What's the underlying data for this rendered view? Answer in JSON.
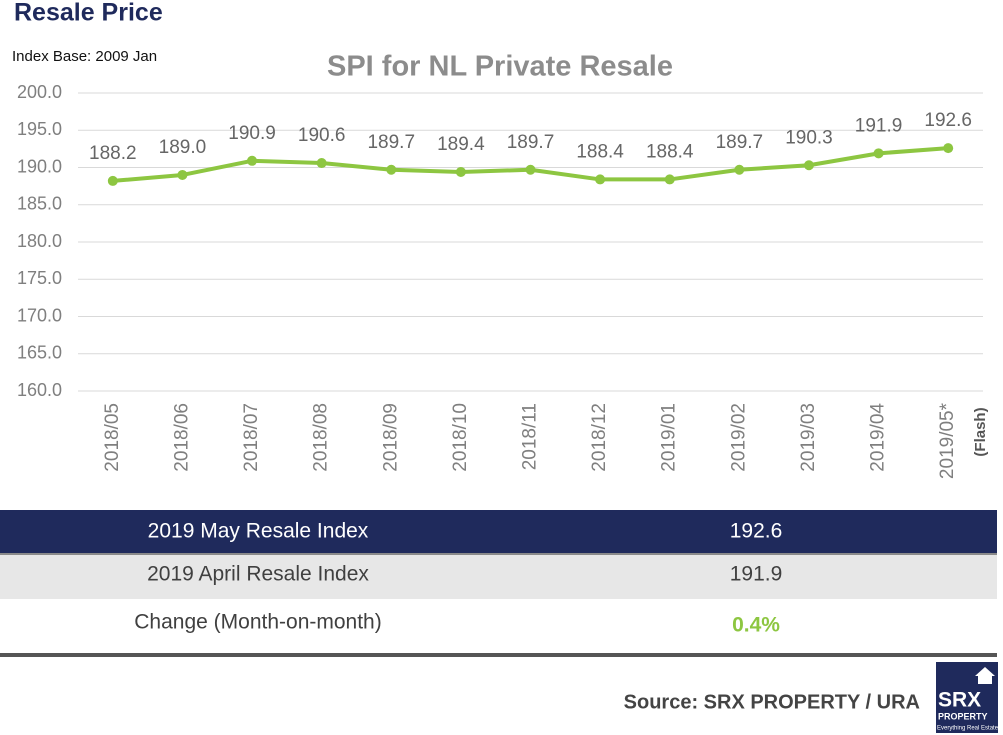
{
  "header": {
    "title": "Resale Price"
  },
  "chart_data": {
    "type": "line",
    "title": "SPI for NL Private Resale",
    "subtitle": "Index Base: 2009 Jan",
    "annotation": "(Flash)",
    "categories": [
      "2018/05",
      "2018/06",
      "2018/07",
      "2018/08",
      "2018/09",
      "2018/10",
      "2018/11",
      "2018/12",
      "2019/01",
      "2019/02",
      "2019/03",
      "2019/04",
      "2019/05*"
    ],
    "values": [
      188.2,
      189.0,
      190.9,
      190.6,
      189.7,
      189.4,
      189.7,
      188.4,
      188.4,
      189.7,
      190.3,
      191.9,
      192.6
    ],
    "value_labels": [
      "188.2",
      "189.0",
      "190.9",
      "190.6",
      "189.7",
      "189.4",
      "189.7",
      "188.4",
      "188.4",
      "189.7",
      "190.3",
      "191.9",
      "192.6"
    ],
    "color": "#8dc641",
    "ylim": [
      160,
      200
    ],
    "yticks": [
      {
        "value": 160,
        "label": "160.0"
      },
      {
        "value": 165,
        "label": "165.0"
      },
      {
        "value": 170,
        "label": "170.0"
      },
      {
        "value": 175,
        "label": "175.0"
      },
      {
        "value": 180,
        "label": "180.0"
      },
      {
        "value": 185,
        "label": "185.0"
      },
      {
        "value": 190,
        "label": "190.0"
      },
      {
        "value": 195,
        "label": "195.0"
      },
      {
        "value": 200,
        "label": "200.0"
      }
    ],
    "grid": true
  },
  "table": {
    "rows": [
      [
        "2019 May Resale Index",
        "192.6"
      ],
      [
        "2019 April Resale Index",
        "191.9"
      ],
      [
        "Change (Month-on-month)",
        "0.4%"
      ]
    ]
  },
  "footer": {
    "source": "Source:  SRX PROPERTY / URA"
  },
  "logo": {
    "name": "SRX",
    "sub": "PROPERTY",
    "tagline": "Everything Real Estate"
  }
}
